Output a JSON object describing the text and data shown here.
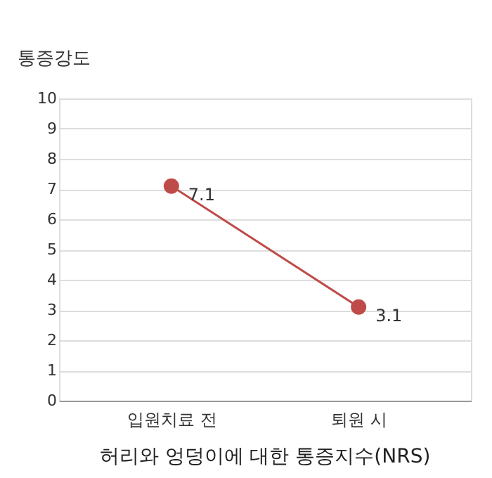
{
  "chart_data": {
    "type": "line",
    "title": "허리와 엉덩이에 대한 통증지수(NRS)",
    "ylabel": "통증강도",
    "categories": [
      "입원치료 전",
      "퇴원 시"
    ],
    "series": [
      {
        "color": "#be4b48",
        "values": [
          7.1,
          3.1
        ]
      }
    ],
    "ylim": [
      0,
      10
    ],
    "yticks": [
      0,
      1,
      2,
      3,
      4,
      5,
      6,
      7,
      8,
      9,
      10
    ],
    "grid": "y",
    "marker": "circle",
    "line_style": "solid",
    "data_labels": true
  }
}
